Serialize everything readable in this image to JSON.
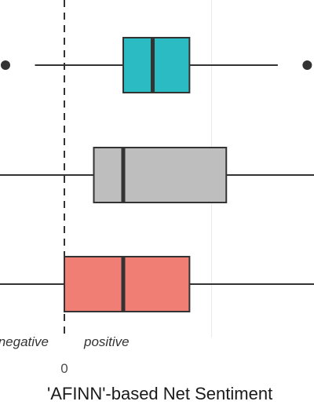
{
  "chart_data": {
    "type": "boxplot",
    "xlabel": "'AFINN'-based Net Sentiment",
    "x_ticks": [
      {
        "value": 0,
        "label": "0"
      }
    ],
    "reference_line": {
      "x": 0,
      "style": "dashed"
    },
    "annotations": [
      {
        "text": "negative",
        "side": "left"
      },
      {
        "text": "positive",
        "side": "right"
      }
    ],
    "grid": true,
    "series": [
      {
        "color": "#2bbcc3",
        "whisker_low": -0.8,
        "q1": 1.6,
        "median": 2.4,
        "q3": 3.4,
        "whisker_high": 5.8,
        "outliers": [
          -1.6,
          6.6
        ]
      },
      {
        "color": "#bebebe",
        "whisker_low": -1.8,
        "q1": 0.8,
        "median": 1.6,
        "q3": 4.4,
        "whisker_high": 7.0,
        "outliers": []
      },
      {
        "color": "#f07e75",
        "whisker_low": -1.8,
        "q1": 0.0,
        "median": 1.6,
        "q3": 3.4,
        "whisker_high": 7.0,
        "outliers": []
      }
    ]
  }
}
